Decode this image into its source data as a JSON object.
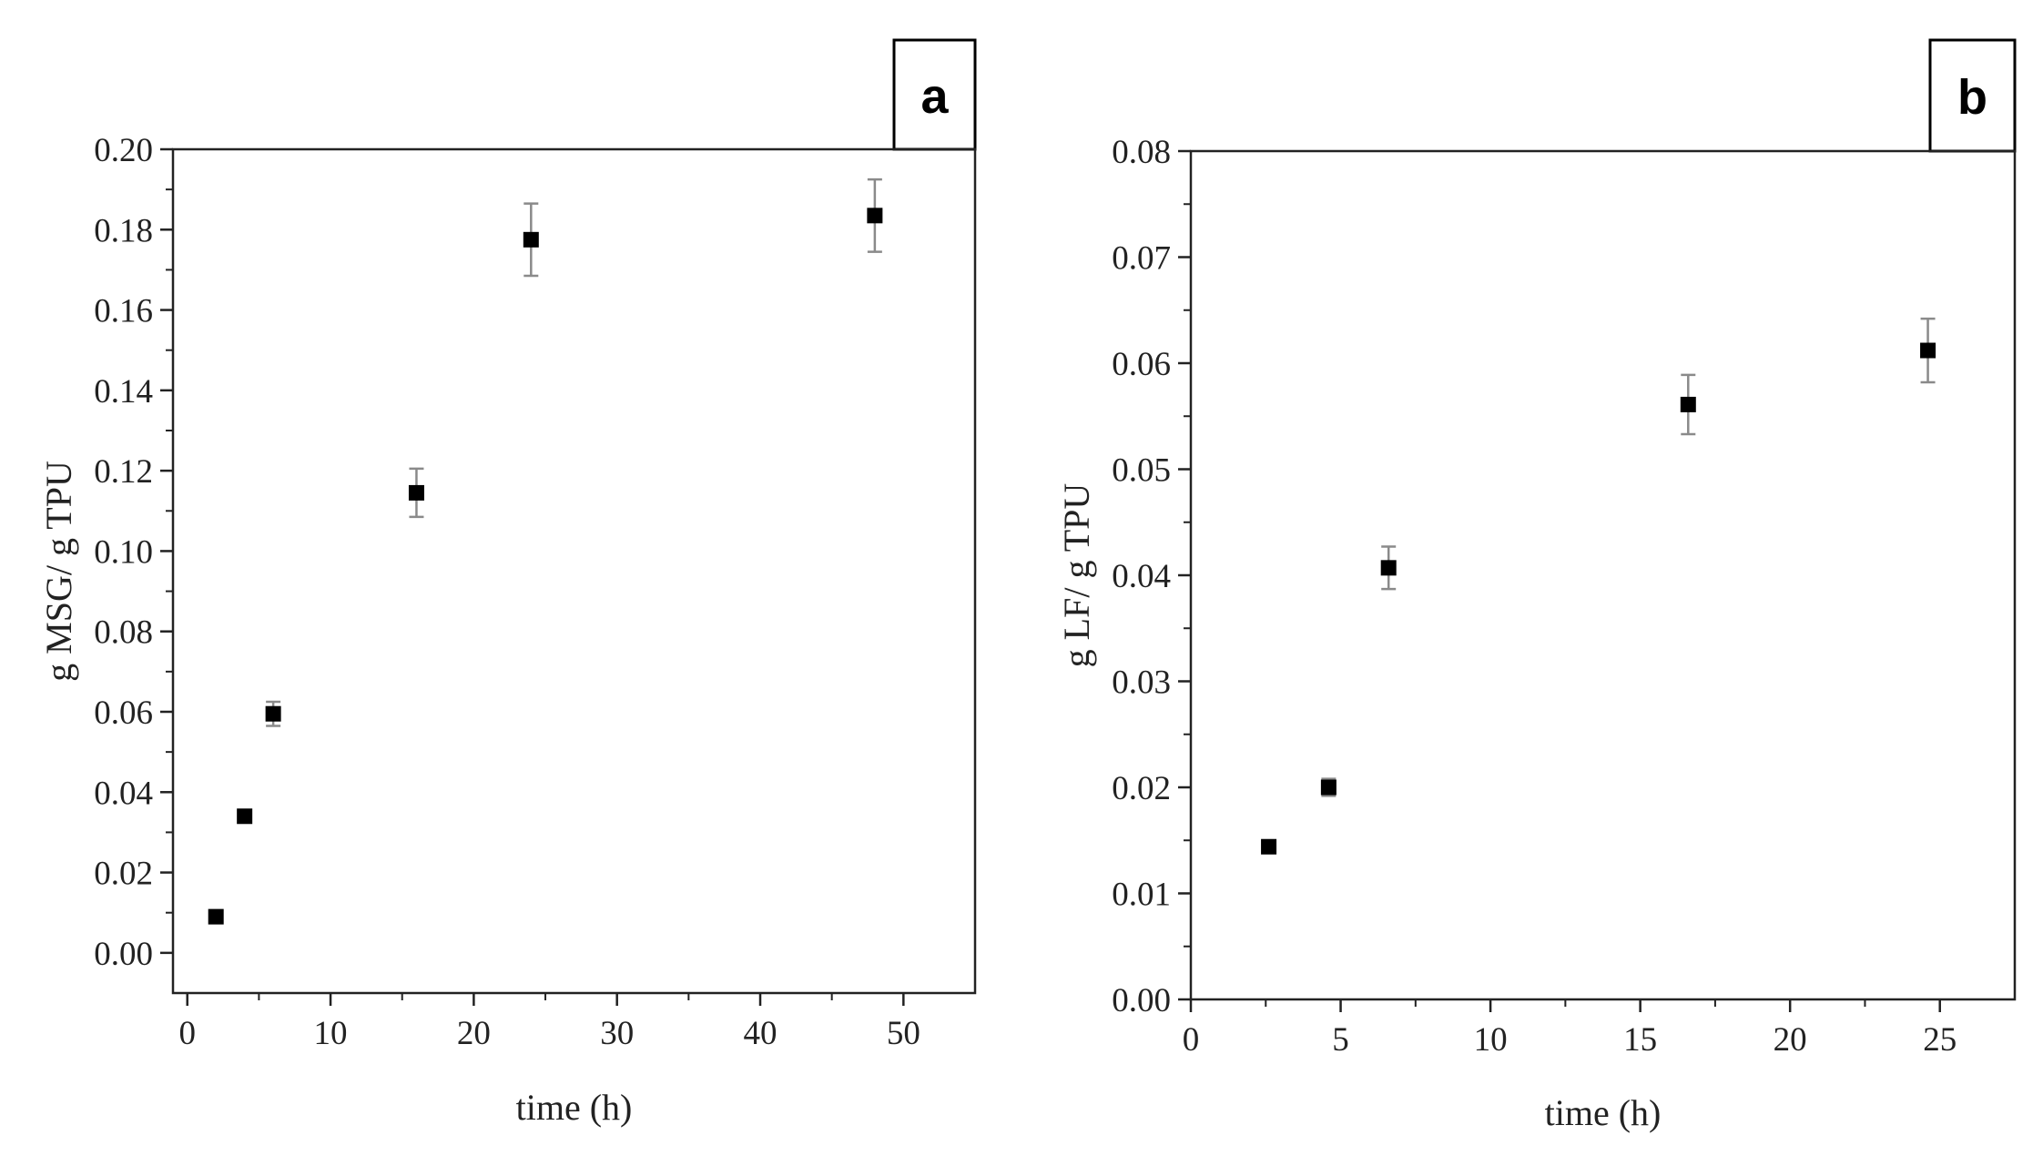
{
  "chart_data": [
    {
      "type": "scatter",
      "panel_label": "a",
      "xlabel": "time (h)",
      "ylabel": "g MSG/ g TPU",
      "xlim": [
        -1,
        55
      ],
      "ylim": [
        -0.01,
        0.2
      ],
      "xticks": [
        0,
        10,
        20,
        30,
        40,
        50
      ],
      "xtick_labels": [
        "0",
        "10",
        "20",
        "30",
        "40",
        "50"
      ],
      "yticks": [
        0.0,
        0.02,
        0.04,
        0.06,
        0.08,
        0.1,
        0.12,
        0.14,
        0.16,
        0.18,
        0.2
      ],
      "ytick_labels": [
        "0.00",
        "0.02",
        "0.04",
        "0.06",
        "0.08",
        "0.10",
        "0.12",
        "0.14",
        "0.16",
        "0.18",
        "0.20"
      ],
      "grid": false,
      "marker": "square",
      "marker_color": "#000000",
      "errorbar_color": "#8a8a8a",
      "points": [
        {
          "x": 2,
          "y": 0.009,
          "err": 0.001
        },
        {
          "x": 4,
          "y": 0.034,
          "err": 0.001
        },
        {
          "x": 6,
          "y": 0.0595,
          "err": 0.003
        },
        {
          "x": 16,
          "y": 0.1145,
          "err": 0.006
        },
        {
          "x": 24,
          "y": 0.1775,
          "err": 0.009
        },
        {
          "x": 48,
          "y": 0.1835,
          "err": 0.009
        }
      ]
    },
    {
      "type": "scatter",
      "panel_label": "b",
      "xlabel": "time (h)",
      "ylabel": "g LF/ g TPU",
      "xlim": [
        0,
        27.5
      ],
      "ylim": [
        0.0,
        0.08
      ],
      "xticks": [
        0,
        5,
        10,
        15,
        20,
        25
      ],
      "xtick_labels": [
        "0",
        "5",
        "10",
        "15",
        "20",
        "25"
      ],
      "yticks": [
        0.0,
        0.01,
        0.02,
        0.03,
        0.04,
        0.05,
        0.06,
        0.07,
        0.08
      ],
      "ytick_labels": [
        "0.00",
        "0.01",
        "0.02",
        "0.03",
        "0.04",
        "0.05",
        "0.06",
        "0.07",
        "0.08"
      ],
      "grid": false,
      "marker": "square",
      "marker_color": "#000000",
      "errorbar_color": "#8a8a8a",
      "points": [
        {
          "x": 2.6,
          "y": 0.0144,
          "err": 0.0005
        },
        {
          "x": 4.6,
          "y": 0.02,
          "err": 0.0008
        },
        {
          "x": 6.6,
          "y": 0.0407,
          "err": 0.002
        },
        {
          "x": 16.6,
          "y": 0.0561,
          "err": 0.0028
        },
        {
          "x": 24.6,
          "y": 0.0612,
          "err": 0.003
        }
      ]
    }
  ]
}
